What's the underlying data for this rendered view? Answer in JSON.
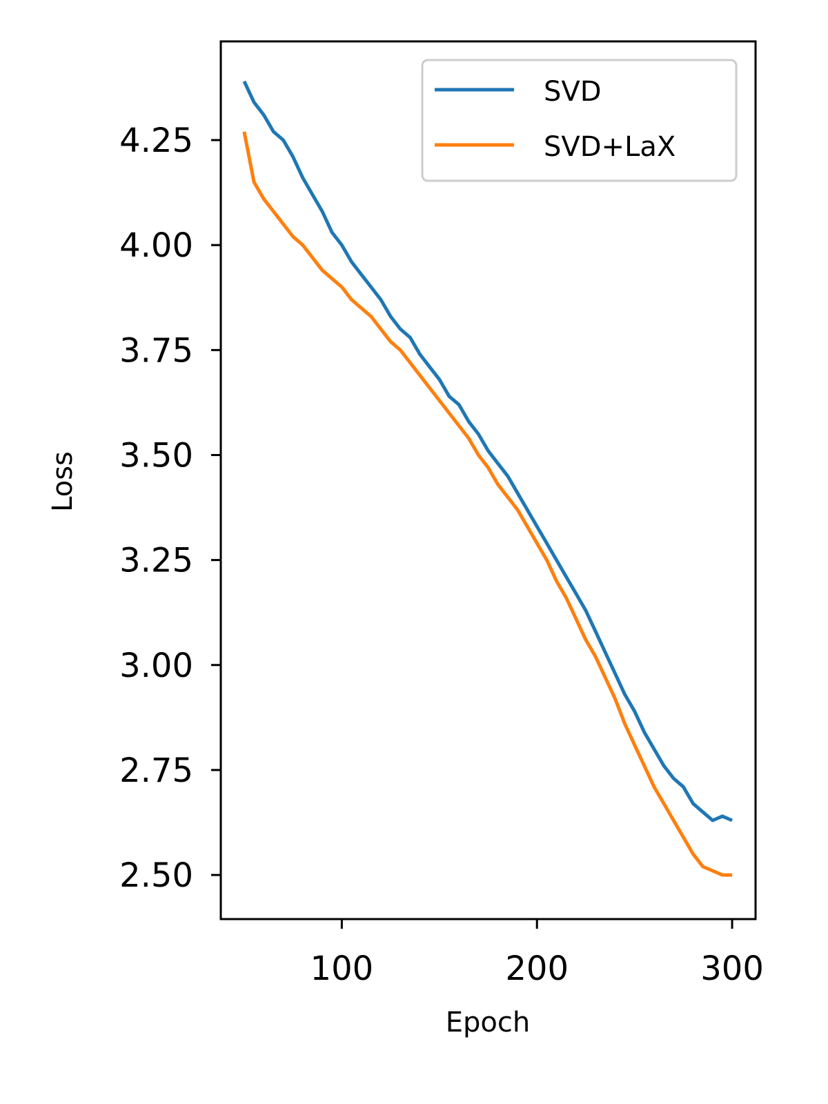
{
  "chart_data": {
    "type": "line",
    "title": "",
    "xlabel": "Epoch",
    "ylabel": "Loss",
    "xlim": [
      38,
      312
    ],
    "ylim": [
      2.395,
      4.485
    ],
    "xticks": [
      100,
      200,
      300
    ],
    "xtick_labels": [
      "100",
      "200",
      "300"
    ],
    "yticks": [
      2.5,
      2.75,
      3.0,
      3.25,
      3.5,
      3.75,
      4.0,
      4.25
    ],
    "ytick_labels": [
      "2.50",
      "2.75",
      "3.00",
      "3.25",
      "3.50",
      "3.75",
      "4.00",
      "4.25"
    ],
    "grid": false,
    "legend_position": "top-right",
    "series": [
      {
        "name": "SVD",
        "color": "#1f77b4",
        "x": [
          50,
          55,
          60,
          65,
          70,
          75,
          80,
          85,
          90,
          95,
          100,
          105,
          110,
          115,
          120,
          125,
          130,
          135,
          140,
          145,
          150,
          155,
          160,
          165,
          170,
          175,
          180,
          185,
          190,
          195,
          200,
          205,
          210,
          215,
          220,
          225,
          230,
          235,
          240,
          245,
          250,
          255,
          260,
          265,
          270,
          275,
          280,
          285,
          290,
          295,
          300
        ],
        "y": [
          4.39,
          4.34,
          4.31,
          4.27,
          4.25,
          4.21,
          4.16,
          4.12,
          4.08,
          4.03,
          4.0,
          3.96,
          3.93,
          3.9,
          3.87,
          3.83,
          3.8,
          3.78,
          3.74,
          3.71,
          3.68,
          3.64,
          3.62,
          3.58,
          3.55,
          3.51,
          3.48,
          3.45,
          3.41,
          3.37,
          3.33,
          3.29,
          3.25,
          3.21,
          3.17,
          3.13,
          3.08,
          3.03,
          2.98,
          2.93,
          2.89,
          2.84,
          2.8,
          2.76,
          2.73,
          2.71,
          2.67,
          2.65,
          2.63,
          2.64,
          2.63
        ]
      },
      {
        "name": "SVD+LaX",
        "color": "#ff7f0e",
        "x": [
          50,
          55,
          60,
          65,
          70,
          75,
          80,
          85,
          90,
          95,
          100,
          105,
          110,
          115,
          120,
          125,
          130,
          135,
          140,
          145,
          150,
          155,
          160,
          165,
          170,
          175,
          180,
          185,
          190,
          195,
          200,
          205,
          210,
          215,
          220,
          225,
          230,
          235,
          240,
          245,
          250,
          255,
          260,
          265,
          270,
          275,
          280,
          285,
          290,
          295,
          300
        ],
        "y": [
          4.27,
          4.15,
          4.11,
          4.08,
          4.05,
          4.02,
          4.0,
          3.97,
          3.94,
          3.92,
          3.9,
          3.87,
          3.85,
          3.83,
          3.8,
          3.77,
          3.75,
          3.72,
          3.69,
          3.66,
          3.63,
          3.6,
          3.57,
          3.54,
          3.5,
          3.47,
          3.43,
          3.4,
          3.37,
          3.33,
          3.29,
          3.25,
          3.2,
          3.16,
          3.11,
          3.06,
          3.02,
          2.97,
          2.92,
          2.86,
          2.81,
          2.76,
          2.71,
          2.67,
          2.63,
          2.59,
          2.55,
          2.52,
          2.51,
          2.5,
          2.5
        ]
      }
    ]
  }
}
